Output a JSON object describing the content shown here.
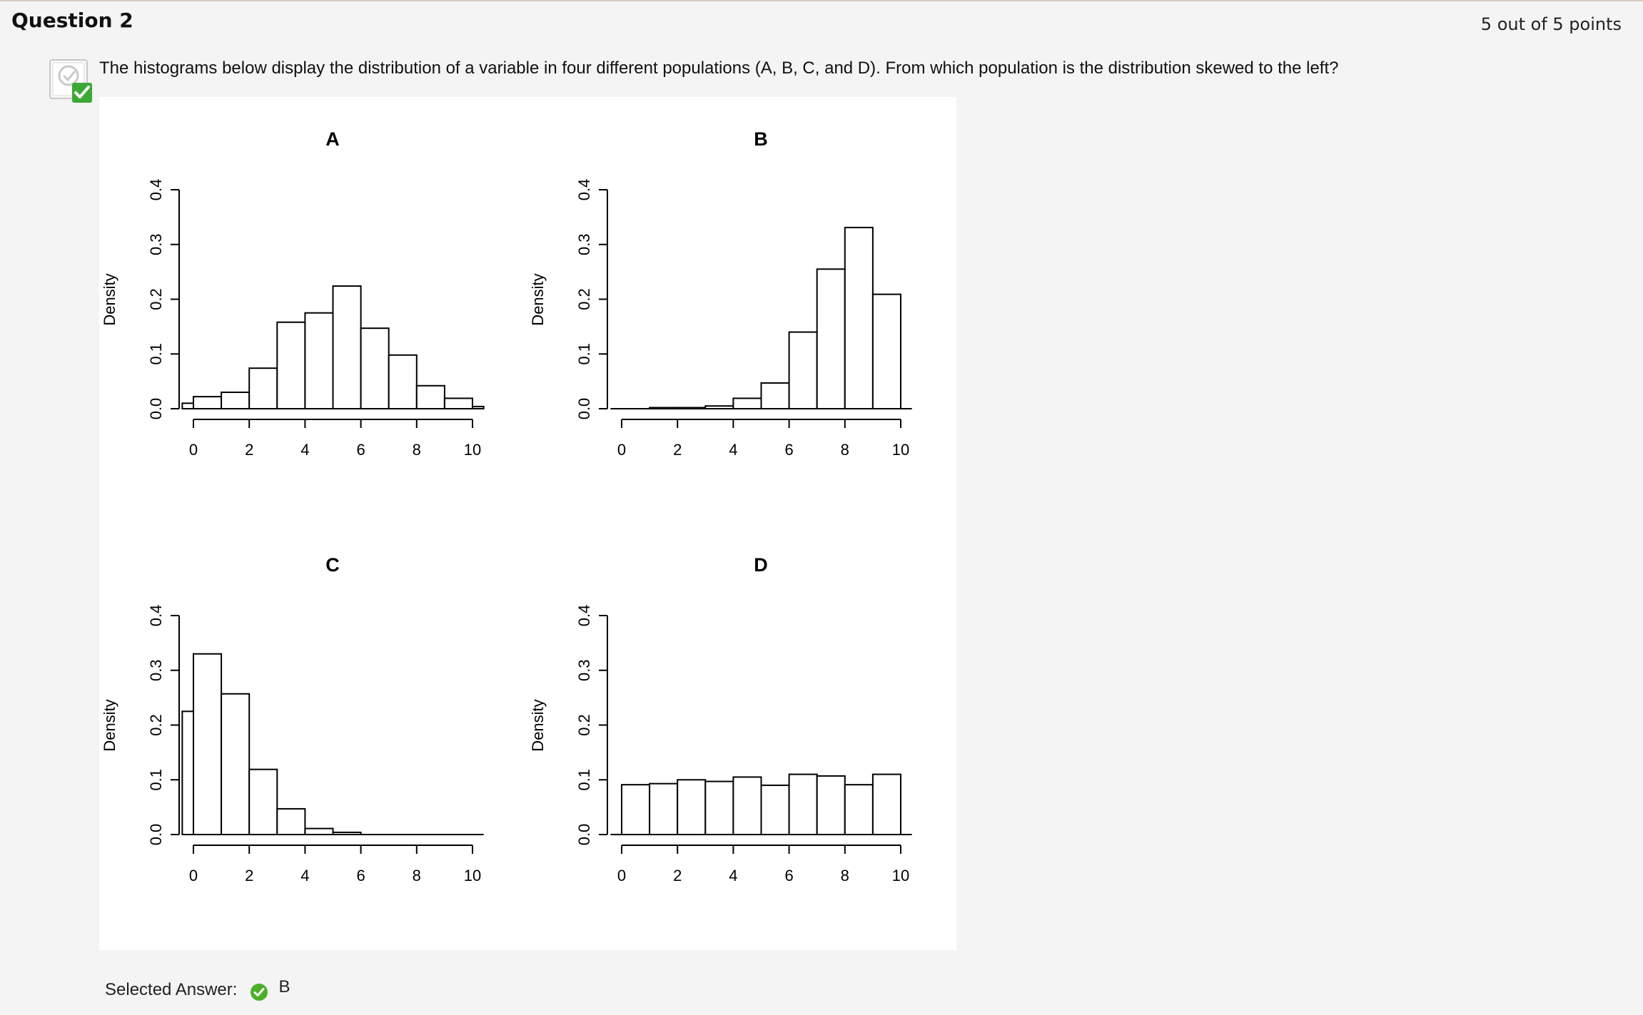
{
  "question": {
    "title": "Question 2",
    "points": "5 out of 5 points",
    "text": "The histograms below display the distribution of a variable in four different populations (A, B, C, and D).  From which population is the distribution skewed to the left?",
    "status_icon": "correct-check-icon"
  },
  "answer": {
    "label": "Selected Answer:",
    "value": "B",
    "status_icon": "correct-check-icon",
    "status_color": "#4caf29"
  },
  "chart_data": [
    {
      "type": "bar",
      "title": "A",
      "ylabel": "Density",
      "xlim": [
        0,
        10
      ],
      "ylim": [
        0,
        0.4
      ],
      "xticks": [
        "0",
        "2",
        "4",
        "6",
        "8",
        "10"
      ],
      "yticks": [
        "0.0",
        "0.1",
        "0.2",
        "0.3",
        "0.4"
      ],
      "bins": [
        [
          -0.4,
          0
        ],
        [
          0,
          1
        ],
        [
          1,
          2
        ],
        [
          2,
          3
        ],
        [
          3,
          4
        ],
        [
          4,
          5
        ],
        [
          5,
          6
        ],
        [
          6,
          7
        ],
        [
          7,
          8
        ],
        [
          8,
          9
        ],
        [
          9,
          10
        ],
        [
          10,
          10.4
        ]
      ],
      "values": [
        0.01,
        0.022,
        0.03,
        0.074,
        0.158,
        0.175,
        0.224,
        0.147,
        0.098,
        0.042,
        0.019,
        0.004
      ]
    },
    {
      "type": "bar",
      "title": "B",
      "ylabel": "Density",
      "xlim": [
        0,
        10
      ],
      "ylim": [
        0,
        0.4
      ],
      "xticks": [
        "0",
        "2",
        "4",
        "6",
        "8",
        "10"
      ],
      "yticks": [
        "0.0",
        "0.1",
        "0.2",
        "0.3",
        "0.4"
      ],
      "bins": [
        [
          1,
          2
        ],
        [
          2,
          3
        ],
        [
          3,
          4
        ],
        [
          4,
          5
        ],
        [
          5,
          6
        ],
        [
          6,
          7
        ],
        [
          7,
          8
        ],
        [
          8,
          9
        ],
        [
          9,
          10
        ]
      ],
      "values": [
        0.002,
        0.002,
        0.005,
        0.019,
        0.047,
        0.14,
        0.255,
        0.331,
        0.209
      ]
    },
    {
      "type": "bar",
      "title": "C",
      "ylabel": "Density",
      "xlim": [
        0,
        10
      ],
      "ylim": [
        0,
        0.4
      ],
      "xticks": [
        "0",
        "2",
        "4",
        "6",
        "8",
        "10"
      ],
      "yticks": [
        "0.0",
        "0.1",
        "0.2",
        "0.3",
        "0.4"
      ],
      "bins": [
        [
          -0.4,
          0
        ],
        [
          0,
          1
        ],
        [
          1,
          2
        ],
        [
          2,
          3
        ],
        [
          3,
          4
        ],
        [
          4,
          5
        ],
        [
          5,
          6
        ],
        [
          6,
          7
        ],
        [
          7,
          8
        ],
        [
          8,
          9
        ],
        [
          9,
          10
        ],
        [
          10,
          10.4
        ]
      ],
      "values": [
        0.225,
        0.33,
        0.257,
        0.119,
        0.047,
        0.011,
        0.004,
        0,
        0,
        0,
        0,
        0
      ]
    },
    {
      "type": "bar",
      "title": "D",
      "ylabel": "Density",
      "xlim": [
        0,
        10
      ],
      "ylim": [
        0,
        0.4
      ],
      "xticks": [
        "0",
        "2",
        "4",
        "6",
        "8",
        "10"
      ],
      "yticks": [
        "0.0",
        "0.1",
        "0.2",
        "0.3",
        "0.4"
      ],
      "bins": [
        [
          0,
          1
        ],
        [
          1,
          2
        ],
        [
          2,
          3
        ],
        [
          3,
          4
        ],
        [
          4,
          5
        ],
        [
          5,
          6
        ],
        [
          6,
          7
        ],
        [
          7,
          8
        ],
        [
          8,
          9
        ],
        [
          9,
          10
        ]
      ],
      "values": [
        0.091,
        0.093,
        0.1,
        0.097,
        0.105,
        0.09,
        0.11,
        0.107,
        0.091,
        0.11
      ]
    }
  ]
}
